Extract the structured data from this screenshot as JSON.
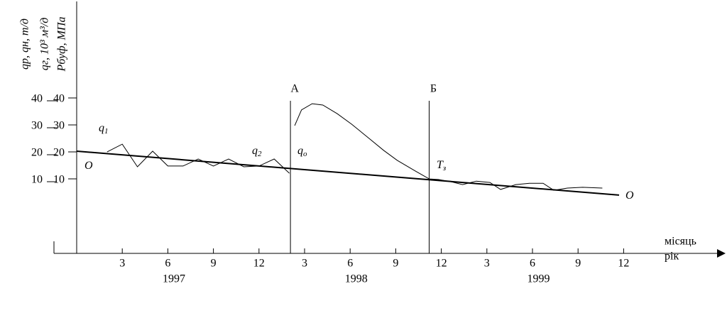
{
  "chart_data": {
    "type": "line",
    "y_labels": [
      "qр, qн, т/д",
      "qг, 10³ м³/д",
      "Pбуф, МПа"
    ],
    "x_label": "місяць",
    "x_label2": "рік",
    "xlim": [
      -1.5,
      42.6
    ],
    "ylim": [
      -15,
      80
    ],
    "y2lim": [
      -15,
      80
    ],
    "xticks": [
      {
        "value": 3,
        "label": "3"
      },
      {
        "value": 6,
        "label": "6"
      },
      {
        "value": 9,
        "label": "9"
      },
      {
        "value": 12,
        "label": "12"
      },
      {
        "value": 15,
        "label": "3"
      },
      {
        "value": 18,
        "label": "6"
      },
      {
        "value": 21,
        "label": "9"
      },
      {
        "value": 24,
        "label": "12"
      },
      {
        "value": 27,
        "label": "3"
      },
      {
        "value": 30,
        "label": "6"
      },
      {
        "value": 33,
        "label": "9"
      },
      {
        "value": 36,
        "label": "12"
      }
    ],
    "years": [
      "1997",
      "1998",
      "1999"
    ],
    "yticks": [
      10,
      20,
      30,
      40
    ],
    "y2ticks": [
      10,
      20,
      30,
      40
    ],
    "markers": [
      {
        "label": "А",
        "x": 14.07
      },
      {
        "label": "Б",
        "x": 23.2
      }
    ],
    "series": [
      {
        "name": "O",
        "color": "#000",
        "width": 2,
        "x": [
          0,
          35.7
        ],
        "values": [
          22.9,
          6.6
        ]
      },
      {
        "name": "q1 q2",
        "color": "#000",
        "width": 1,
        "x": [
          2,
          3,
          4,
          5,
          6,
          7,
          8,
          9,
          10,
          11,
          12,
          13,
          14
        ],
        "values": [
          22.6,
          25.5,
          17.1,
          22.9,
          17.4,
          17.4,
          20,
          17.4,
          20,
          17.1,
          17.4,
          20,
          14.7
        ]
      },
      {
        "name": "qo",
        "color": "#000",
        "width": 1,
        "x": [
          14.35,
          14.8,
          15.5,
          16.2,
          17.15,
          18.1,
          19.25,
          20.2,
          21.1,
          22.3,
          23.2
        ],
        "values": [
          32.4,
          38.2,
          40.5,
          40,
          36.8,
          32.9,
          27.6,
          23.2,
          19.5,
          15.5,
          12.6
        ]
      },
      {
        "name": "T3",
        "color": "#000",
        "width": 1,
        "x": [
          23.2,
          23.8,
          24.6,
          25.4,
          26.3,
          27.2,
          27.9,
          28.9,
          29.8,
          30.7,
          31.4,
          32.3,
          33.3,
          34.6
        ],
        "values": [
          12.6,
          12.4,
          11.6,
          10.5,
          11.8,
          11.3,
          8.7,
          10.5,
          11,
          11,
          8.4,
          9.2,
          9.5,
          9.2
        ]
      }
    ],
    "annotations": [
      {
        "text": "O"
      },
      {
        "text": "q",
        "sub": "1"
      },
      {
        "text": "q",
        "sub": "2"
      },
      {
        "text": "q",
        "sub": "o"
      },
      {
        "text": "T",
        "sub": "з"
      },
      {
        "text": "O"
      }
    ]
  }
}
